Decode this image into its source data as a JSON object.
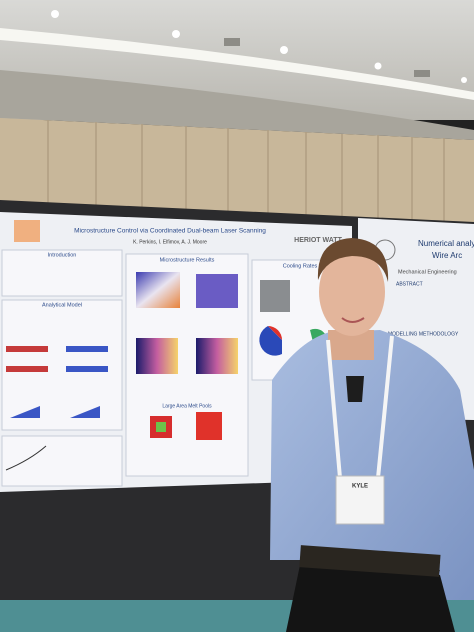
{
  "poster": {
    "title": "Microstructure Control via Coordinated Dual-beam Laser Scanning",
    "authors": "K. Perkins, I. Elfimov, A. J. Moore",
    "logo": "HERIOT WATT",
    "sections": [
      "Introduction",
      "Microstructure Results",
      "Analytical Model",
      "Cooling Rates",
      "Large Area Melt Pools"
    ]
  },
  "poster_right": {
    "title": "Numerical analy",
    "title2": "Wire Arc",
    "subtitle": "Mechanical Engineering",
    "sections": [
      "ABSTRACT",
      "MODELLING METHODOLOGY"
    ]
  },
  "badge": {
    "name": "KYLE"
  }
}
